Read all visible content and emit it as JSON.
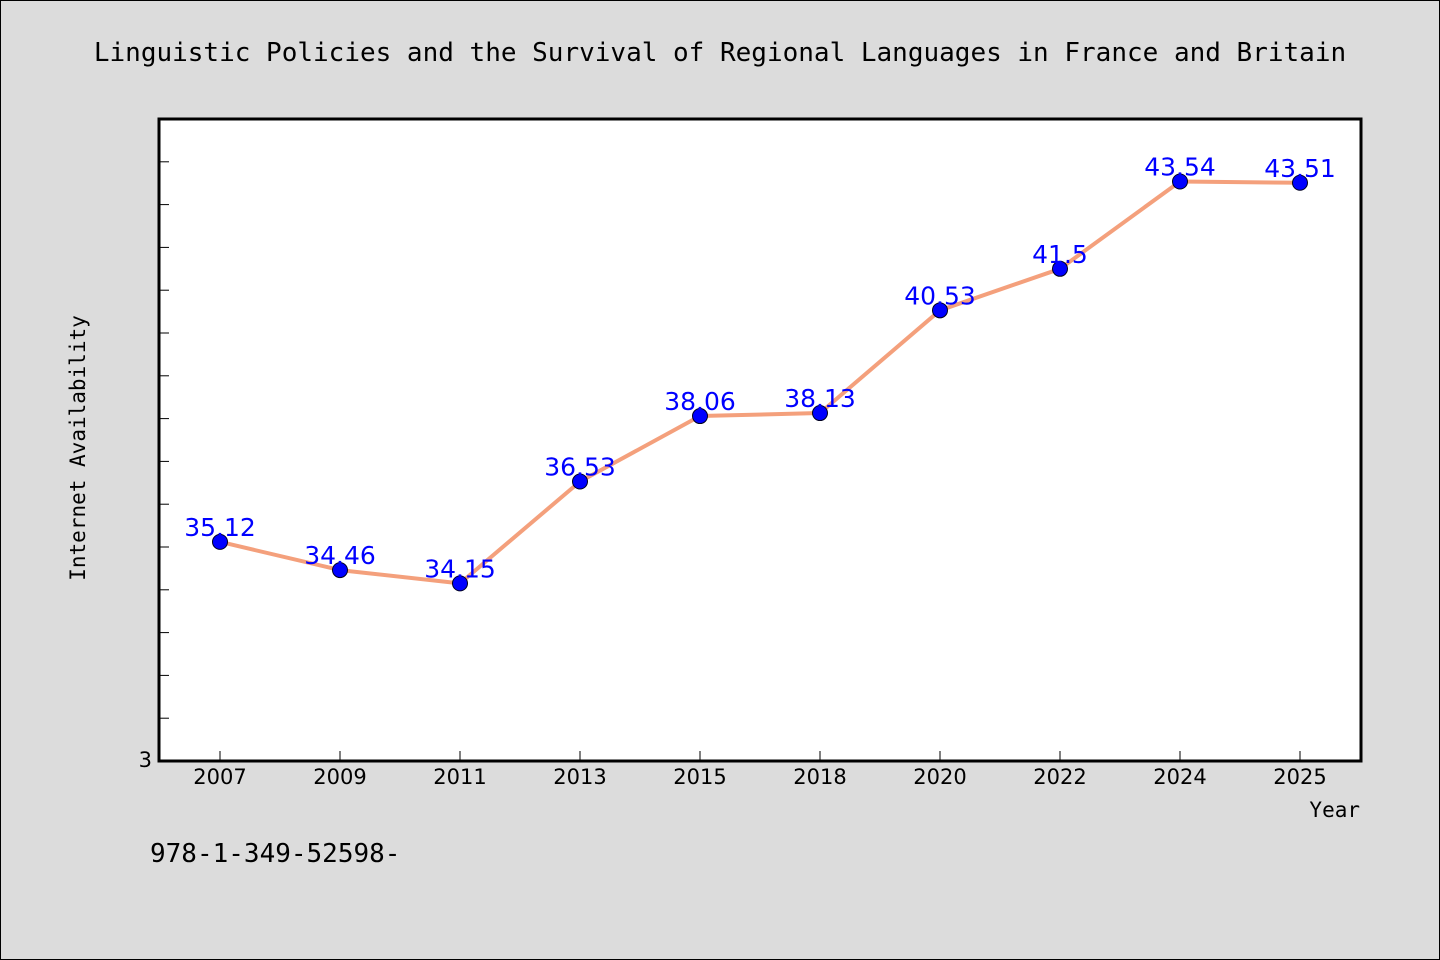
{
  "chart_data": {
    "type": "line",
    "title": "Linguistic Policies and the Survival of Regional Languages in France and Britain",
    "xlabel": "Year",
    "ylabel": "Internet Availability",
    "categories": [
      "2007",
      "2009",
      "2011",
      "2013",
      "2015",
      "2018",
      "2020",
      "2022",
      "2024",
      "2025"
    ],
    "series": [
      {
        "values": [
          35.12,
          34.46,
          34.15,
          36.53,
          38.06,
          38.13,
          40.53,
          41.5,
          43.54,
          43.51
        ],
        "labels": [
          "35.12",
          "34.46",
          "34.15",
          "36.53",
          "38.06",
          "38.13",
          "40.53",
          "41.5",
          "43.54",
          "43.51"
        ]
      }
    ],
    "ylim": [
      30,
      45
    ],
    "y_tick_labels": [
      "3"
    ],
    "grid": false,
    "legend": "none",
    "colors": {
      "line": "#f4a07c",
      "marker": "#0000ff",
      "data_label": "#0000ff",
      "background": "#dcdcdc",
      "plot_background": "#ffffff"
    }
  },
  "footer": {
    "text": "978-1-349-52598-"
  }
}
